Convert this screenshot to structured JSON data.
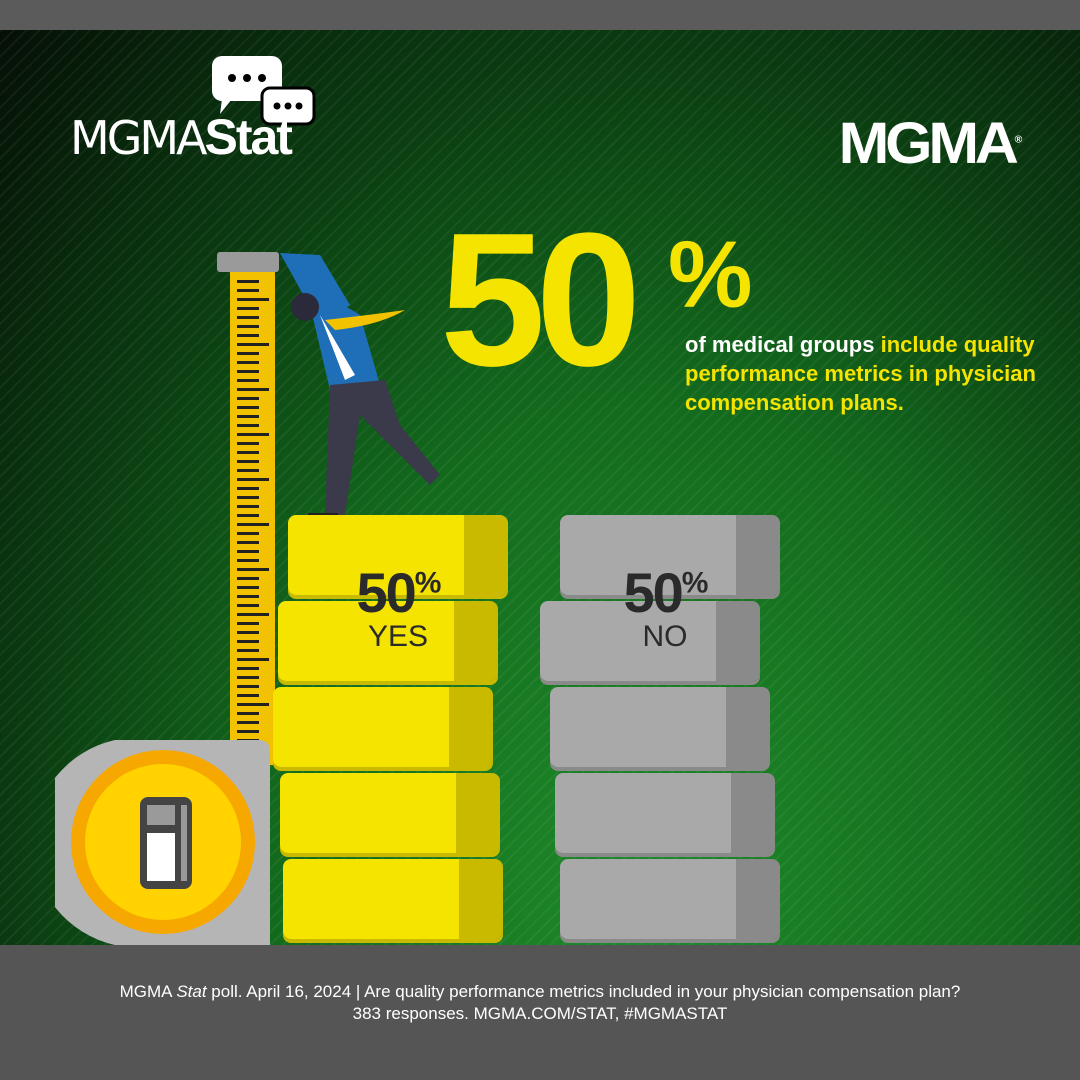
{
  "logos": {
    "stat_logo": "MGMAStat",
    "brand_logo": "MGMA"
  },
  "headline": {
    "value": "50",
    "percent_sign": "%",
    "text_white": "of medical groups ",
    "text_highlight": "include quality performance metrics in physician compensation plans."
  },
  "colors": {
    "yes": "#f5e400",
    "no": "#a9a9a9",
    "accent": "#f5e400",
    "background": "#136b1d"
  },
  "chart_data": {
    "type": "bar",
    "categories": [
      "YES",
      "NO"
    ],
    "values": [
      50,
      50
    ],
    "value_labels": [
      "50%",
      "50%"
    ],
    "ylim": [
      0,
      100
    ]
  },
  "footer": {
    "line1_a": "MGMA ",
    "line1_italic": "Stat",
    "line1_b": " poll. April 16, 2024  |  Are quality performance metrics included in your physician compensation plan?",
    "line2": "383 responses. MGMA.COM/STAT, #MGMASTAT"
  }
}
